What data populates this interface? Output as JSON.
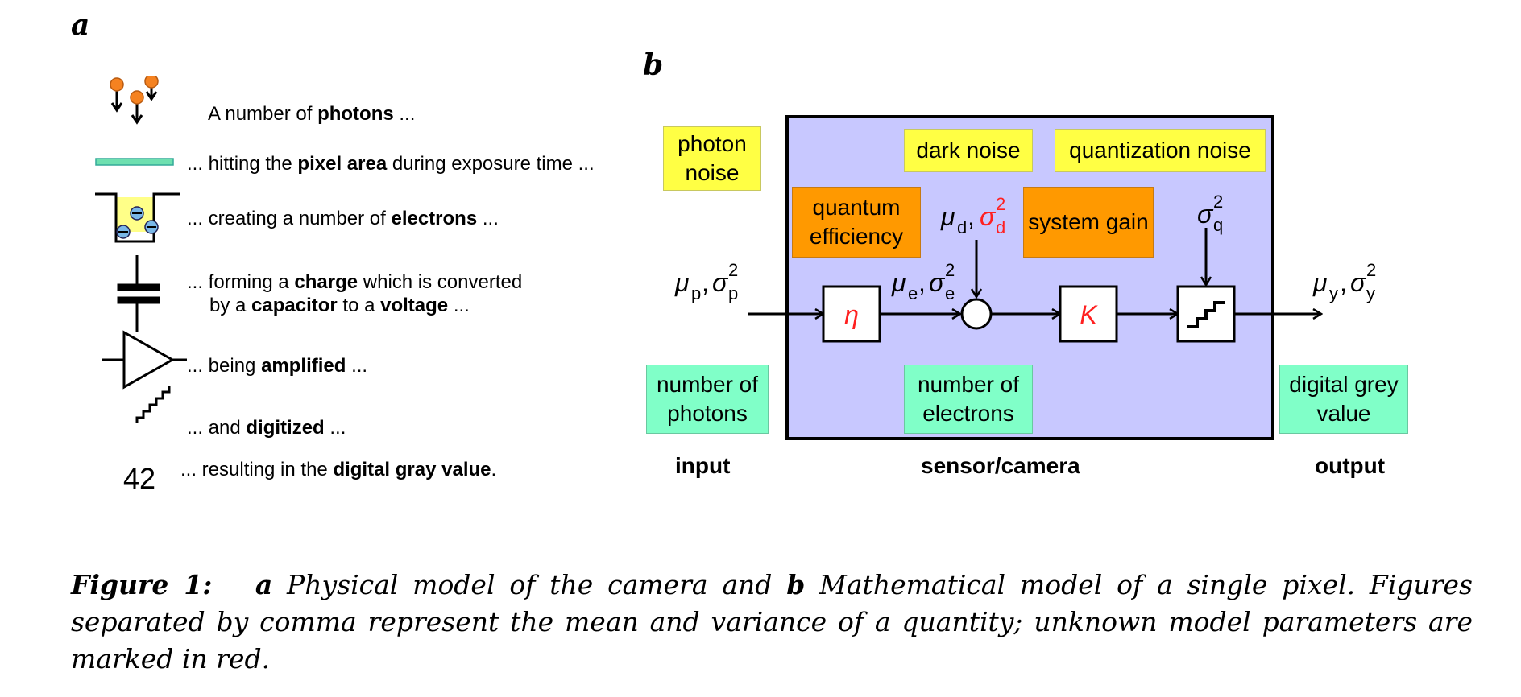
{
  "panel_a": {
    "label": "a",
    "steps": [
      {
        "pre": "A number of ",
        "bold": "photons",
        "post": " ..."
      },
      {
        "pre": "... hitting the ",
        "bold": "pixel area",
        "post": " during exposure time ..."
      },
      {
        "pre": "... creating a number of ",
        "bold": "electrons",
        "post": " ..."
      },
      {
        "pre": "... forming a ",
        "bold": "charge",
        "post": " which is converted"
      },
      {
        "pre": "by a ",
        "bold": "capacitor",
        "mid": " to a ",
        "bold2": "voltage",
        "post": " ..."
      },
      {
        "pre": "... being ",
        "bold": "amplified",
        "post": " ..."
      },
      {
        "pre": "... and ",
        "bold": "digitized",
        "post": " ..."
      },
      {
        "pre": "... resulting in the ",
        "bold": "digital gray value",
        "post": "."
      }
    ],
    "gray_value_number": "42"
  },
  "panel_b": {
    "label": "b",
    "boxes": {
      "photon_noise": "photon noise",
      "dark_noise": "dark noise",
      "quantization_noise": "quantization noise",
      "quantum_efficiency": "quantum efficiency",
      "system_gain": "system gain",
      "number_of_photons": "number of photons",
      "number_of_electrons": "number of electrons",
      "digital_grey_value": "digital grey value"
    },
    "symbols": {
      "eta": "η",
      "K": "K",
      "mu_p": "μ",
      "sub_p": "p",
      "sigma": "σ",
      "sup_2": "2",
      "sub_e": "e",
      "sub_d": "d",
      "sub_q": "q",
      "sub_y": "y",
      "comma": ","
    },
    "bottom_labels": {
      "input": "input",
      "sensor": "sensor/camera",
      "output": "output"
    },
    "colors": {
      "sensor_fill": "#c8c8ff",
      "red": "#ff2020",
      "yellow": "#ffff44",
      "orange": "#ff9900",
      "green": "#80ffc8"
    }
  },
  "caption": {
    "figure": "Figure 1:",
    "a_label": "a",
    "a_text": " Physical model of the camera and ",
    "b_label": "b",
    "b_text": " Mathematical model of a single pixel. Figures separated by comma represent the mean and variance of a quantity; unknown model parameters are marked in red."
  }
}
